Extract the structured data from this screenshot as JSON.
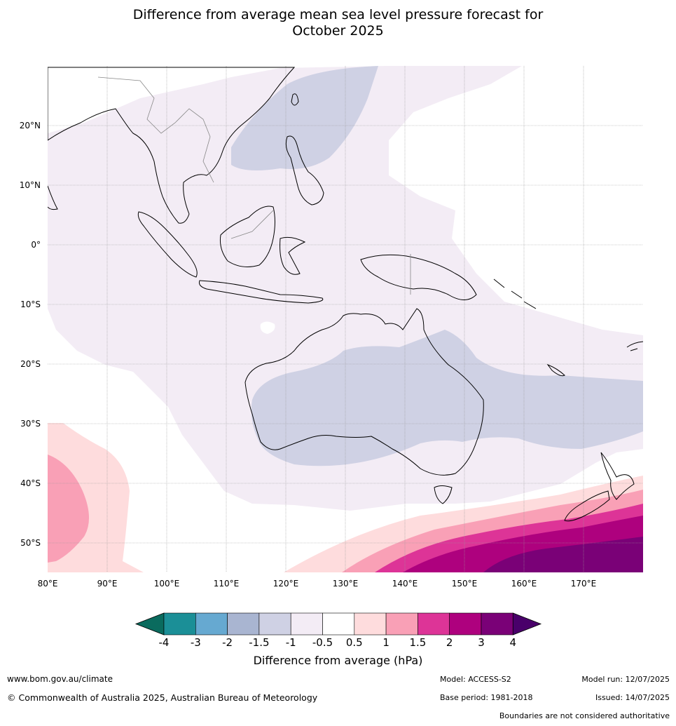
{
  "title_line1": "Difference from average mean sea level pressure forecast for",
  "title_line2": "October 2025",
  "lon_labels": [
    "80°E",
    "90°E",
    "100°E",
    "110°E",
    "120°E",
    "130°E",
    "140°E",
    "150°E",
    "160°E",
    "170°E"
  ],
  "lat_labels": [
    "20°N",
    "10°N",
    "0°",
    "10°S",
    "20°S",
    "30°S",
    "40°S",
    "50°S"
  ],
  "colorbar": {
    "title": "Difference from average (hPa)",
    "tick_labels": [
      "-4",
      "-3",
      "-2",
      "-1.5",
      "-1",
      "-0.5",
      "0.5",
      "1",
      "1.5",
      "2",
      "3",
      "4"
    ],
    "colors": [
      "#0a6b5e",
      "#1b8f97",
      "#66a9d1",
      "#a9b5d1",
      "#cfd1e4",
      "#f3ecf5",
      "#ffffff",
      "#fedcdd",
      "#f9a0b6",
      "#dd3497",
      "#ae017e",
      "#7a0177",
      "#49006a"
    ]
  },
  "footer": {
    "url": "www.bom.gov.au/climate",
    "copyright": "© Commonwealth of Australia 2025, Australian Bureau of Meteorology",
    "model": "Model: ACCESS-S2",
    "base_period": "Base period: 1981-2018",
    "model_run": "Model run: 12/07/2025",
    "issued": "Issued: 14/07/2025",
    "disclaimer": "Boundaries are not considered authoritative"
  }
}
